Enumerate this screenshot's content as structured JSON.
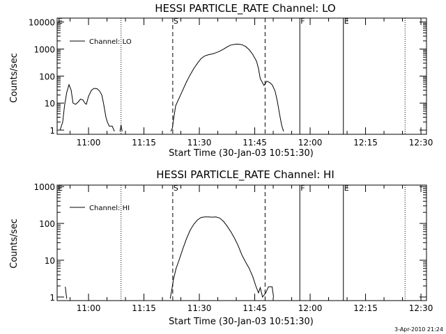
{
  "charts": [
    {
      "title": "HESSI PARTICLE_RATE Channel: LO",
      "ylabel": "Counts/sec",
      "xlabel": "Start Time (30-Jan-03 10:51:30)",
      "legend": "Channel: LO",
      "yticks": [
        "1",
        "10",
        "100",
        "1000",
        "10000"
      ]
    },
    {
      "title": "HESSI PARTICLE_RATE Channel: HI",
      "ylabel": "Counts/sec",
      "xlabel": "Start Time (30-Jan-03 10:51:30)",
      "legend": "Channel: HI",
      "yticks": [
        "1",
        "10",
        "100",
        "1000"
      ]
    }
  ],
  "xticks": [
    "11:00",
    "11:15",
    "11:30",
    "11:45",
    "12:00",
    "12:15",
    "12:30"
  ],
  "markers": {
    "E": "E",
    "S": "S",
    "F": "F"
  },
  "timestamp": "3-Apr-2010 21:24",
  "chart_data": [
    {
      "type": "line",
      "title": "HESSI PARTICLE_RATE Channel: LO",
      "xlabel": "Start Time (30-Jan-03 10:51:30)",
      "ylabel": "Counts/sec",
      "yscale": "log",
      "xlim_minutes_after_10_51_30": [
        0,
        100
      ],
      "ylim": [
        0.7,
        14000
      ],
      "series": [
        {
          "name": "Channel: LO",
          "segments": [
            [
              [
                0.8,
                1
              ],
              [
                1.5,
                2
              ],
              [
                2.0,
                8
              ],
              [
                2.6,
                25
              ],
              [
                3.2,
                48
              ],
              [
                3.8,
                30
              ],
              [
                4.3,
                10
              ],
              [
                5.0,
                9
              ],
              [
                5.7,
                11
              ],
              [
                6.3,
                14
              ],
              [
                7.0,
                13
              ],
              [
                7.5,
                10
              ],
              [
                7.9,
                9
              ],
              [
                8.5,
                18
              ],
              [
                9.3,
                30
              ],
              [
                10.0,
                35
              ],
              [
                10.8,
                34
              ],
              [
                11.5,
                28
              ],
              [
                12.1,
                20
              ],
              [
                12.6,
                9
              ],
              [
                13.2,
                3
              ],
              [
                13.6,
                2
              ],
              [
                14.1,
                1.4
              ],
              [
                14.9,
                1.4
              ],
              [
                15.5,
                0.9
              ]
            ],
            [
              [
                17.0,
                0.9
              ],
              [
                17.3,
                1.5
              ],
              [
                17.6,
                0.9
              ]
            ],
            [
              [
                30.8,
                0.9
              ],
              [
                31.2,
                1.2
              ],
              [
                31.6,
                3
              ],
              [
                32.1,
                8
              ],
              [
                33.0,
                15
              ],
              [
                34.0,
                30
              ],
              [
                35.0,
                60
              ],
              [
                36.0,
                110
              ],
              [
                37.0,
                190
              ],
              [
                38.0,
                300
              ],
              [
                39.0,
                450
              ],
              [
                40.0,
                560
              ],
              [
                41.0,
                620
              ],
              [
                42.0,
                660
              ],
              [
                43.0,
                730
              ],
              [
                44.0,
                830
              ],
              [
                45.0,
                980
              ],
              [
                46.0,
                1200
              ],
              [
                47.0,
                1400
              ],
              [
                48.0,
                1500
              ],
              [
                49.0,
                1520
              ],
              [
                50.0,
                1450
              ],
              [
                51.0,
                1250
              ],
              [
                52.0,
                950
              ],
              [
                53.0,
                620
              ],
              [
                54.0,
                350
              ],
              [
                54.5,
                190
              ],
              [
                55.0,
                80
              ],
              [
                55.5,
                60
              ],
              [
                56.0,
                45
              ],
              [
                56.8,
                65
              ],
              [
                57.5,
                58
              ],
              [
                58.2,
                48
              ],
              [
                59.0,
                28
              ],
              [
                59.6,
                12
              ],
              [
                60.2,
                4
              ],
              [
                60.8,
                1.5
              ],
              [
                61.3,
                0.9
              ]
            ]
          ]
        }
      ],
      "reference_lines": [
        {
          "x": 17.3,
          "style": "dotted"
        },
        {
          "x": 31.3,
          "style": "dashed",
          "label": "S"
        },
        {
          "x": 56.3,
          "style": "dashed"
        },
        {
          "x": 65.7,
          "style": "solid",
          "label": "F"
        },
        {
          "x": 77.5,
          "style": "solid",
          "label": "E"
        },
        {
          "x": 94.2,
          "style": "dotted"
        }
      ]
    },
    {
      "type": "line",
      "title": "HESSI PARTICLE_RATE Channel: HI",
      "xlabel": "Start Time (30-Jan-03 10:51:30)",
      "ylabel": "Counts/sec",
      "yscale": "log",
      "xlim_minutes_after_10_51_30": [
        0,
        100
      ],
      "ylim": [
        0.8,
        1100
      ],
      "series": [
        {
          "name": "Channel: HI",
          "segments": [
            [
              [
                2.2,
                1.9
              ],
              [
                2.4,
                1.3
              ],
              [
                2.6,
                0.9
              ]
            ],
            [
              [
                30.6,
                0.9
              ],
              [
                31.0,
                1.5
              ],
              [
                31.5,
                3
              ],
              [
                32.2,
                6
              ],
              [
                33.0,
                10
              ],
              [
                34.0,
                20
              ],
              [
                35.0,
                38
              ],
              [
                36.0,
                65
              ],
              [
                37.0,
                95
              ],
              [
                38.0,
                125
              ],
              [
                39.0,
                145
              ],
              [
                40.0,
                150
              ],
              [
                41.0,
                150
              ],
              [
                42.0,
                148
              ],
              [
                43.0,
                150
              ],
              [
                44.0,
                140
              ],
              [
                45.0,
                115
              ],
              [
                46.0,
                85
              ],
              [
                47.0,
                60
              ],
              [
                48.0,
                40
              ],
              [
                49.0,
                25
              ],
              [
                50.0,
                14
              ],
              [
                51.0,
                9
              ],
              [
                52.0,
                6
              ],
              [
                53.0,
                3.5
              ],
              [
                53.8,
                2
              ],
              [
                54.5,
                1.3
              ],
              [
                55.0,
                1.8
              ],
              [
                55.6,
                1.0
              ],
              [
                56.5,
                1.3
              ],
              [
                57.2,
                1.9
              ],
              [
                58.2,
                1.9
              ],
              [
                58.6,
                1.0
              ]
            ]
          ]
        }
      ],
      "reference_lines": [
        {
          "x": 17.3,
          "style": "dotted"
        },
        {
          "x": 31.3,
          "style": "dashed",
          "label": "S"
        },
        {
          "x": 56.3,
          "style": "dashed"
        },
        {
          "x": 65.7,
          "style": "solid",
          "label": "F"
        },
        {
          "x": 77.5,
          "style": "solid",
          "label": "E"
        },
        {
          "x": 94.2,
          "style": "dotted"
        }
      ]
    }
  ]
}
